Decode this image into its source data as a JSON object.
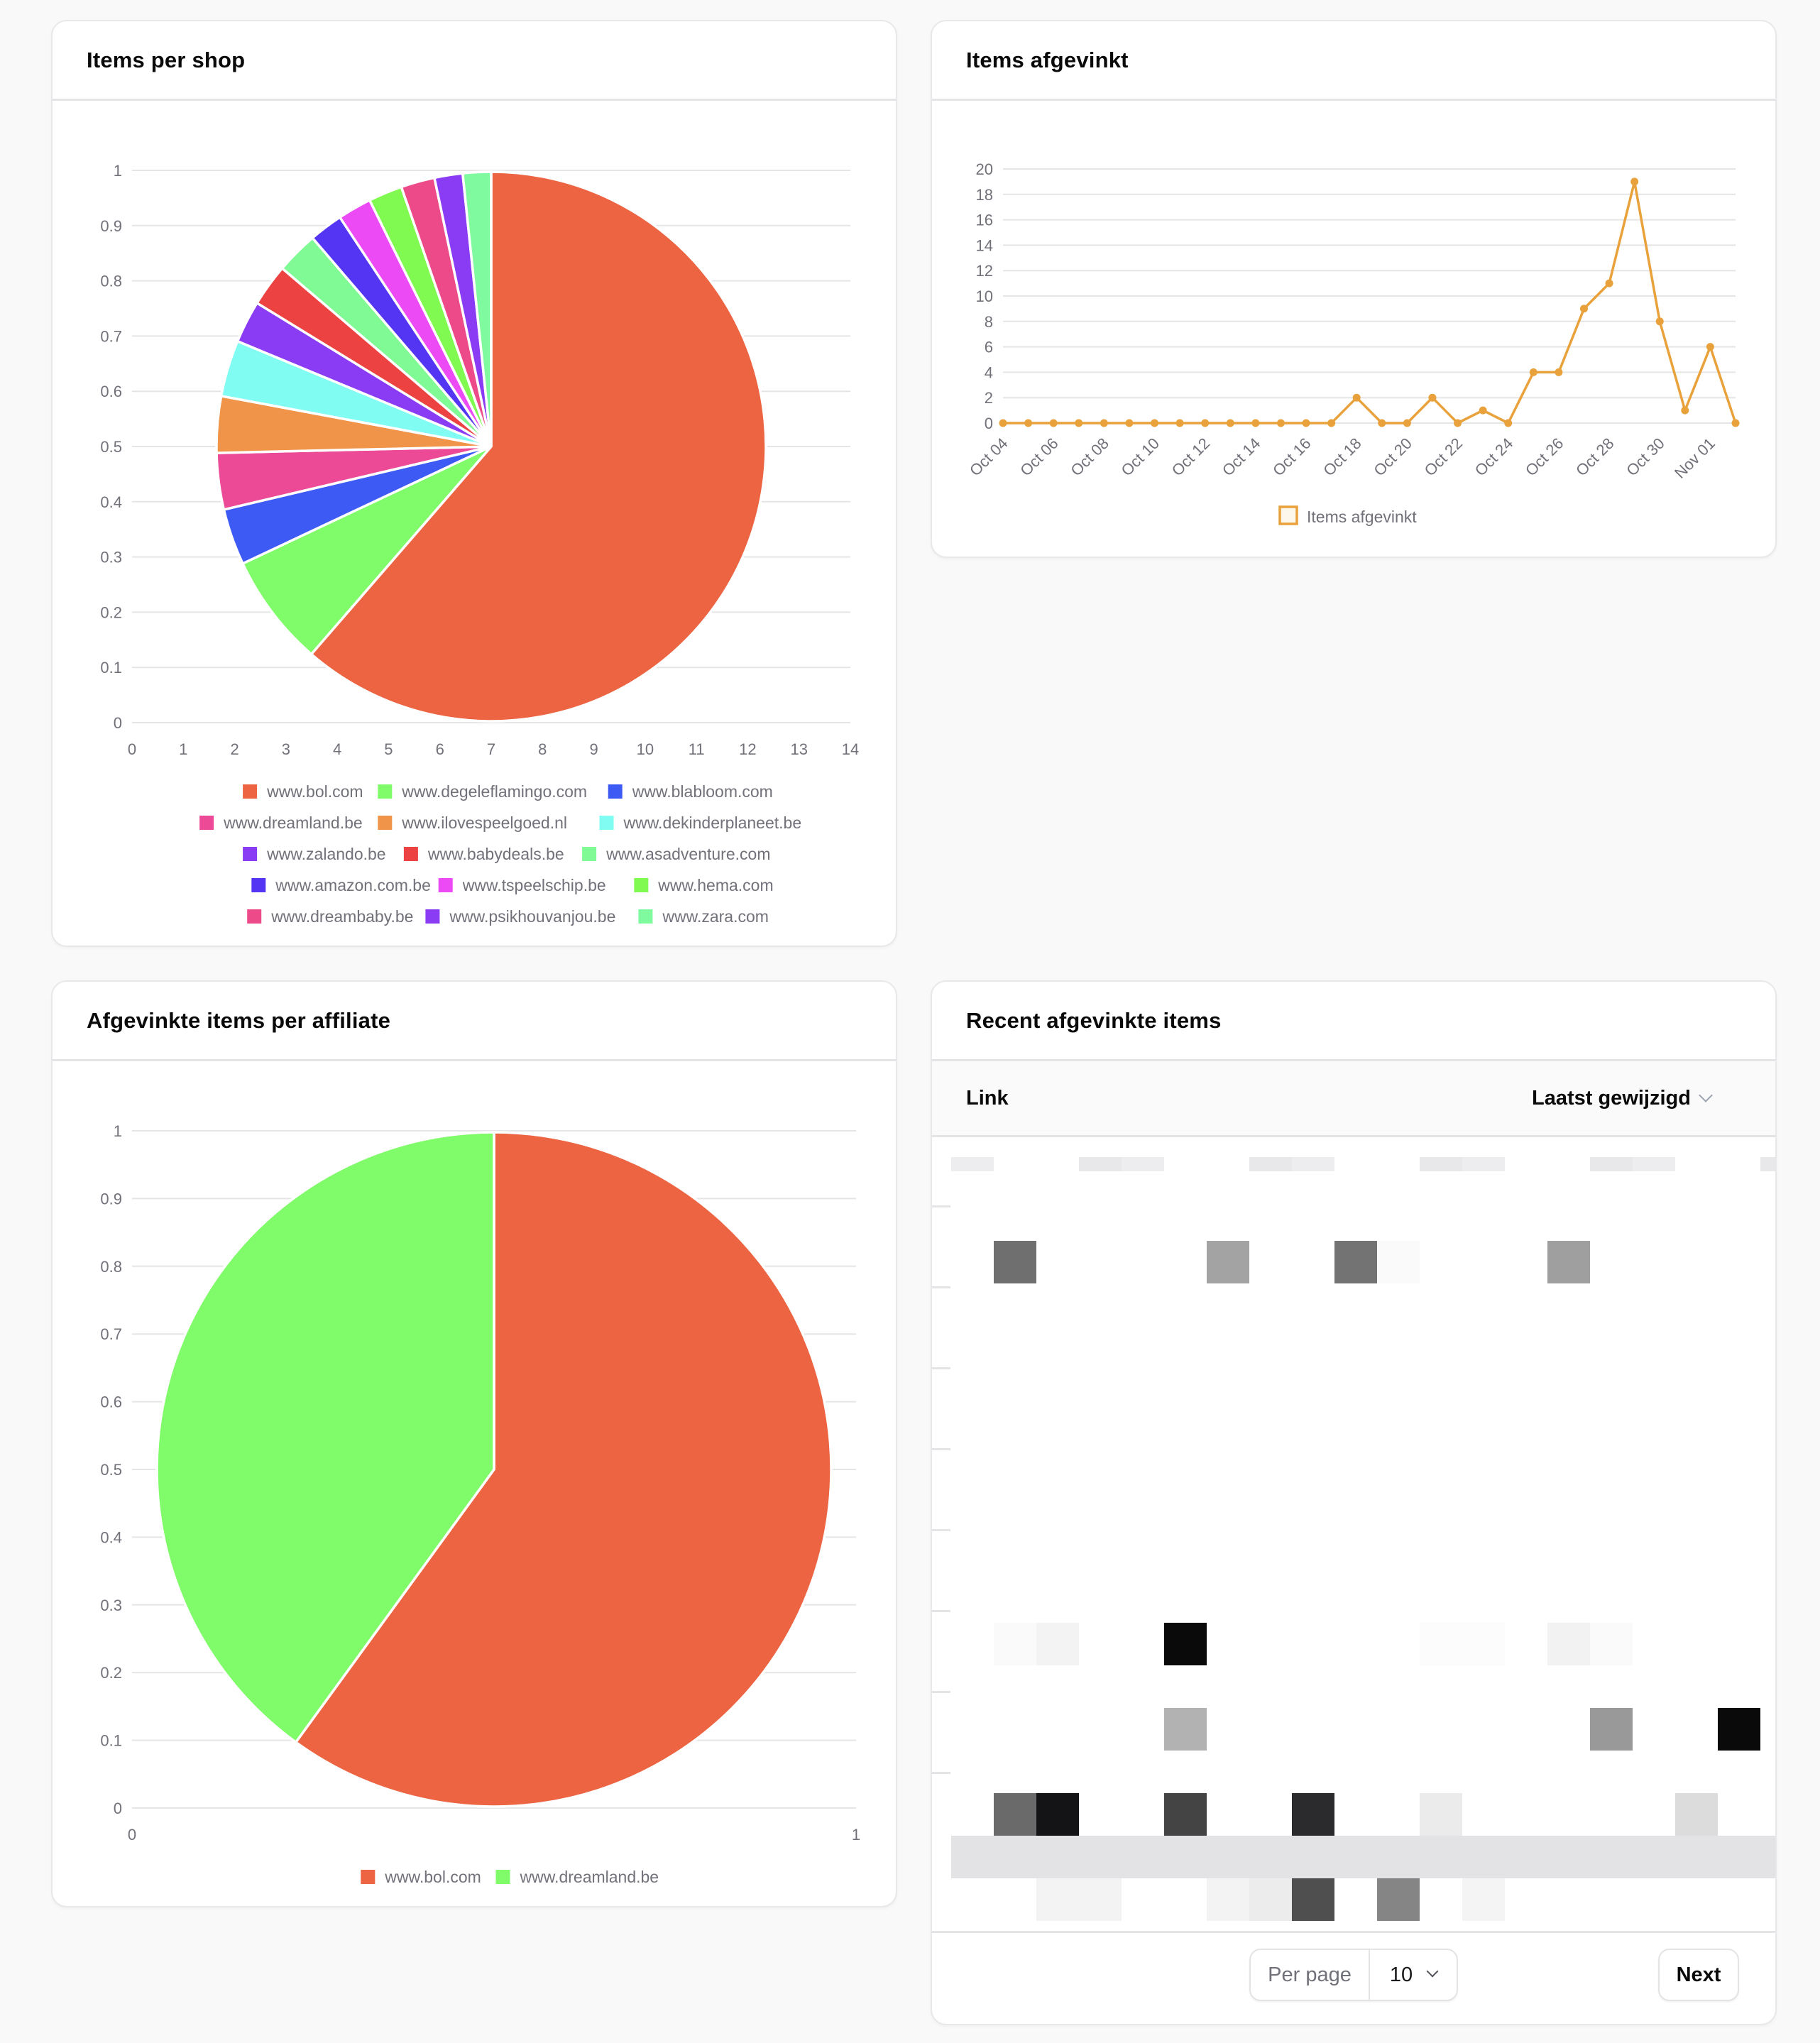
{
  "cards": {
    "items_per_shop": {
      "title": "Items per shop"
    },
    "items_afgevinkt": {
      "title": "Items afgevinkt"
    },
    "affiliate": {
      "title": "Afgevinkte items per affiliate"
    },
    "recent": {
      "title": "Recent afgevinkte items",
      "columns": {
        "link": "Link",
        "last_modified": "Laatst gewijzigd"
      },
      "pagination": {
        "per_page_label": "Per page",
        "per_page_value": "10",
        "next_label": "Next"
      }
    }
  },
  "chart_data": [
    {
      "type": "pie",
      "title": "Items per shop",
      "xlabel": "",
      "ylabel": "",
      "x_ticks": [
        "0",
        "1",
        "2",
        "3",
        "4",
        "5",
        "6",
        "7",
        "8",
        "9",
        "10",
        "11",
        "12",
        "13",
        "14"
      ],
      "y_ticks": [
        "0",
        "0.1",
        "0.2",
        "0.3",
        "0.4",
        "0.5",
        "0.6",
        "0.7",
        "0.8",
        "0.9",
        "1"
      ],
      "grid": true,
      "legend_position": "bottom",
      "labels": [
        "www.bol.com",
        "www.degeleflamingo.com",
        "www.blabloom.com",
        "www.dreamland.be",
        "www.ilovespeelgoed.nl",
        "www.dekinderplaneet.be",
        "www.zalando.be",
        "www.babydeals.be",
        "www.asadventure.com",
        "www.amazon.com.be",
        "www.tspeelschip.be",
        "www.hema.com",
        "www.dreambaby.be",
        "www.psikhouvanjou.be",
        "www.zara.com"
      ],
      "values": [
        37,
        4,
        2,
        2,
        2,
        2,
        1.5,
        1.5,
        1.5,
        1.2,
        1.2,
        1.2,
        1.2,
        1,
        1
      ],
      "colors": [
        "#ec6442",
        "#80fc6a",
        "#3d5af4",
        "#ec4a96",
        "#f09449",
        "#80fcf2",
        "#8a3cf4",
        "#ec4242",
        "#80fa94",
        "#5535f4",
        "#ec4af4",
        "#80fa50",
        "#ec4a88",
        "#8a3cf4",
        "#80fa9e"
      ]
    },
    {
      "type": "line",
      "title": "Items afgevinkt",
      "xlabel": "",
      "ylabel": "",
      "ylim": [
        0,
        20
      ],
      "y_ticks": [
        "0",
        "2",
        "4",
        "6",
        "8",
        "10",
        "12",
        "14",
        "16",
        "18",
        "20"
      ],
      "x_tick_labels": [
        "Oct 04",
        "Oct 06",
        "Oct 08",
        "Oct 10",
        "Oct 12",
        "Oct 14",
        "Oct 16",
        "Oct 18",
        "Oct 20",
        "Oct 22",
        "Oct 24",
        "Oct 26",
        "Oct 28",
        "Oct 30",
        "Nov 01"
      ],
      "x": [
        "Oct 04",
        "Oct 05",
        "Oct 06",
        "Oct 07",
        "Oct 08",
        "Oct 09",
        "Oct 10",
        "Oct 11",
        "Oct 12",
        "Oct 13",
        "Oct 14",
        "Oct 15",
        "Oct 16",
        "Oct 17",
        "Oct 18",
        "Oct 19",
        "Oct 20",
        "Oct 21",
        "Oct 22",
        "Oct 23",
        "Oct 24",
        "Oct 25",
        "Oct 26",
        "Oct 27",
        "Oct 28",
        "Oct 29",
        "Oct 30",
        "Oct 31",
        "Nov 01",
        "Nov 02"
      ],
      "grid": true,
      "legend_position": "bottom",
      "series": [
        {
          "name": "Items afgevinkt",
          "color": "#e9a23b",
          "values": [
            0,
            0,
            0,
            0,
            0,
            0,
            0,
            0,
            0,
            0,
            0,
            0,
            0,
            0,
            2,
            0,
            0,
            2,
            0,
            1,
            0,
            4,
            4,
            9,
            11,
            19,
            8,
            1,
            6,
            0
          ]
        }
      ]
    },
    {
      "type": "pie",
      "title": "Afgevinkte items per affiliate",
      "xlabel": "",
      "ylabel": "",
      "x_ticks": [
        "0",
        "1"
      ],
      "y_ticks": [
        "0",
        "0.1",
        "0.2",
        "0.3",
        "0.4",
        "0.5",
        "0.6",
        "0.7",
        "0.8",
        "0.9",
        "1"
      ],
      "grid": true,
      "legend_position": "bottom",
      "labels": [
        "www.bol.com",
        "www.dreamland.be"
      ],
      "values": [
        3,
        2
      ],
      "colors": [
        "#ec6442",
        "#80fc6a"
      ]
    }
  ]
}
